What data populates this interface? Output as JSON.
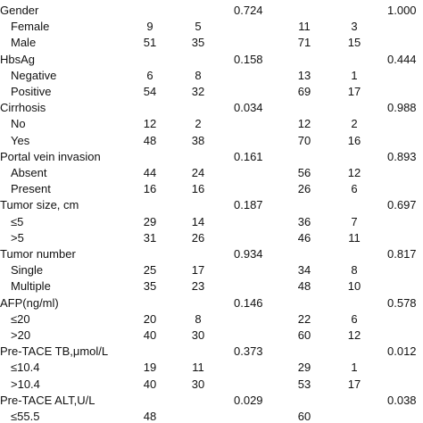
{
  "table": {
    "rows": [
      [
        "Gender",
        null,
        null,
        "0.724",
        null,
        null,
        "1.000"
      ],
      [
        "Female",
        "9",
        "5",
        null,
        "11",
        "3",
        null
      ],
      [
        "Male",
        "51",
        "35",
        null,
        "71",
        "15",
        null
      ],
      [
        "HbsAg",
        null,
        null,
        "0.158",
        null,
        null,
        "0.444"
      ],
      [
        "Negative",
        "6",
        "8",
        null,
        "13",
        "1",
        null
      ],
      [
        "Positive",
        "54",
        "32",
        null,
        "69",
        "17",
        null
      ],
      [
        "Cirrhosis",
        null,
        null,
        "0.034",
        null,
        null,
        "0.988"
      ],
      [
        "No",
        "12",
        "2",
        null,
        "12",
        "2",
        null
      ],
      [
        "Yes",
        "48",
        "38",
        null,
        "70",
        "16",
        null
      ],
      [
        "Portal vein invasion",
        null,
        null,
        "0.161",
        null,
        null,
        "0.893"
      ],
      [
        "Absent",
        "44",
        "24",
        null,
        "56",
        "12",
        null
      ],
      [
        "Present",
        "16",
        "16",
        null,
        "26",
        "6",
        null
      ],
      [
        "Tumor size, cm",
        null,
        null,
        "0.187",
        null,
        null,
        "0.697"
      ],
      [
        "≤5",
        "29",
        "14",
        null,
        "36",
        "7",
        null
      ],
      [
        ">5",
        "31",
        "26",
        null,
        "46",
        "11",
        null
      ],
      [
        "Tumor number",
        null,
        null,
        "0.934",
        null,
        null,
        "0.817"
      ],
      [
        "Single",
        "25",
        "17",
        null,
        "34",
        "8",
        null
      ],
      [
        "Multiple",
        "35",
        "23",
        null,
        "48",
        "10",
        null
      ],
      [
        "AFP(ng/ml)",
        null,
        null,
        "0.146",
        null,
        null,
        "0.578"
      ],
      [
        "≤20",
        "20",
        "8",
        null,
        "22",
        "6",
        null
      ],
      [
        ">20",
        "40",
        "30",
        null,
        "60",
        "12",
        null
      ],
      [
        "Pre-TACE TB,μmol/L",
        null,
        null,
        "0.373",
        null,
        null,
        "0.012"
      ],
      [
        "≤10.4",
        "19",
        "11",
        null,
        "29",
        "1",
        null
      ],
      [
        ">10.4",
        "40",
        "30",
        null,
        "53",
        "17",
        null
      ],
      [
        "Pre-TACE ALT,U/L",
        null,
        null,
        "0.029",
        null,
        null,
        "0.038"
      ],
      [
        "≤55.5",
        "48",
        null,
        null,
        "60",
        null,
        null
      ]
    ]
  }
}
